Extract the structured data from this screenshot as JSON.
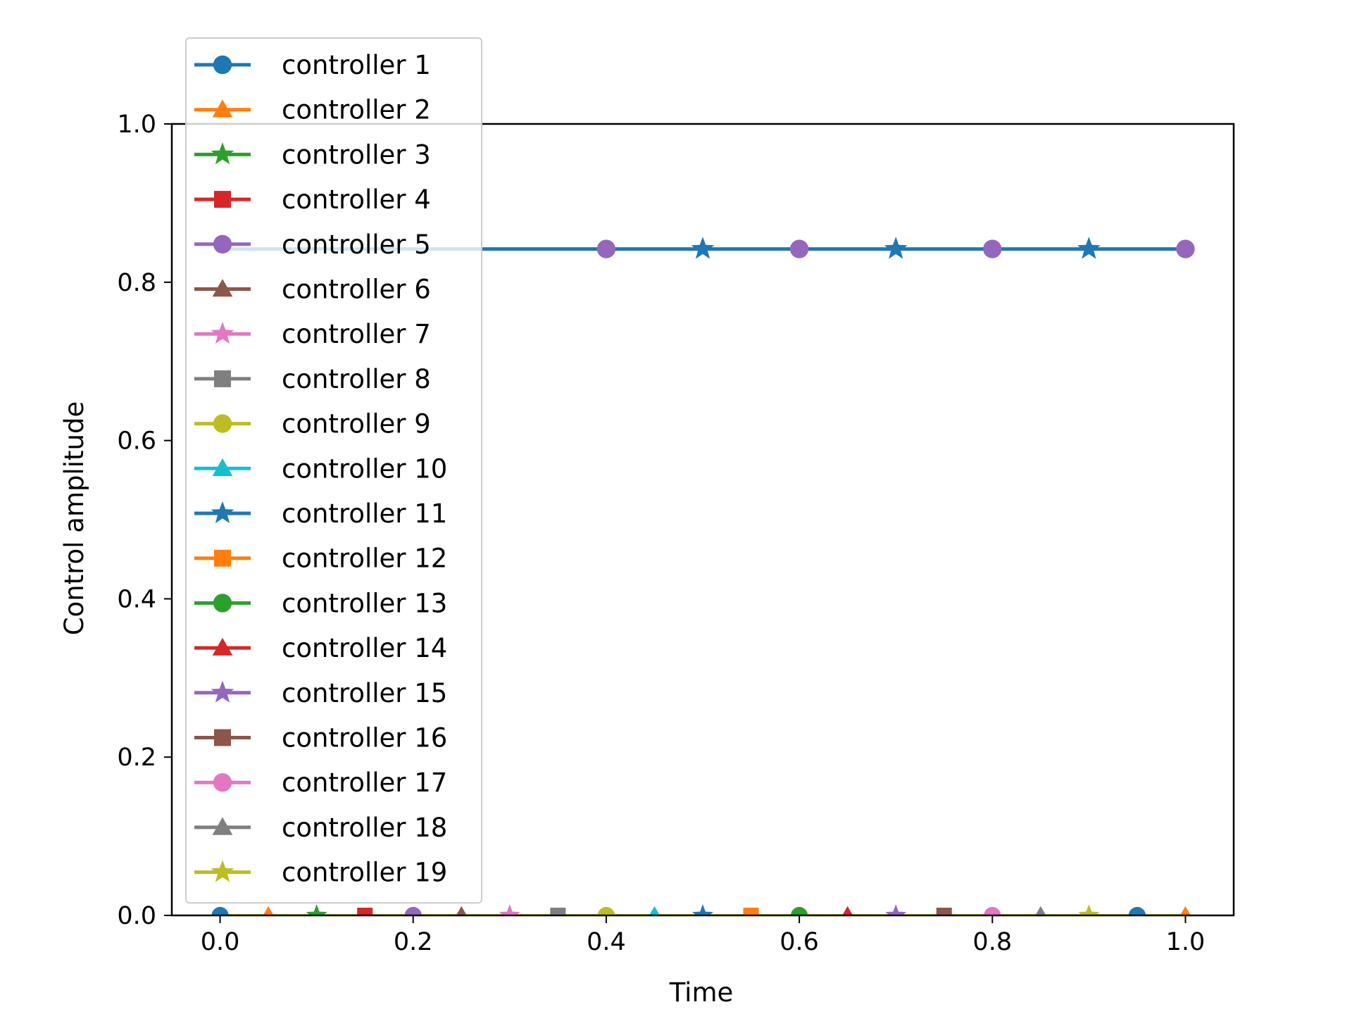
{
  "chart_data": {
    "type": "line",
    "title": "",
    "xlabel": "Time",
    "ylabel": "Control amplitude",
    "xlim": [
      -0.05,
      1.05
    ],
    "ylim": [
      0.0,
      1.0
    ],
    "xticks": [
      "0.0",
      "0.2",
      "0.4",
      "0.6",
      "0.8",
      "1.0"
    ],
    "yticks": [
      "0.0",
      "0.2",
      "0.4",
      "0.6",
      "0.8",
      "1.0"
    ],
    "grid": false,
    "legend_position": "upper-left",
    "x": [
      0.0,
      0.05,
      0.1,
      0.15,
      0.2,
      0.25,
      0.3,
      0.35,
      0.4,
      0.45,
      0.5,
      0.55,
      0.6,
      0.65,
      0.7,
      0.75,
      0.8,
      0.85,
      0.9,
      0.95,
      1.0
    ],
    "series": [
      {
        "name": "controller 1",
        "color": "#1f77b4",
        "marker": "circle",
        "value": 0.0
      },
      {
        "name": "controller 2",
        "color": "#ff7f0e",
        "marker": "triangle",
        "value": 0.0
      },
      {
        "name": "controller 3",
        "color": "#2ca02c",
        "marker": "star",
        "value": 0.0
      },
      {
        "name": "controller 4",
        "color": "#d62728",
        "marker": "square",
        "value": 0.0
      },
      {
        "name": "controller 5",
        "color": "#9467bd",
        "marker": "circle",
        "value": 0.0
      },
      {
        "name": "controller 6",
        "color": "#8c564b",
        "marker": "triangle",
        "value": 0.0
      },
      {
        "name": "controller 7",
        "color": "#e377c2",
        "marker": "star",
        "value": 0.0
      },
      {
        "name": "controller 8",
        "color": "#7f7f7f",
        "marker": "square",
        "value": 0.0
      },
      {
        "name": "controller 9",
        "color": "#bcbd22",
        "marker": "circle",
        "value": 0.0
      },
      {
        "name": "controller 10",
        "color": "#17becf",
        "marker": "triangle",
        "value": 0.0
      },
      {
        "name": "controller 11",
        "color": "#1f77b4",
        "marker": "star",
        "value": 0.0
      },
      {
        "name": "controller 12",
        "color": "#ff7f0e",
        "marker": "square",
        "value": 0.0
      },
      {
        "name": "controller 13",
        "color": "#2ca02c",
        "marker": "circle",
        "value": 0.0
      },
      {
        "name": "controller 14",
        "color": "#d62728",
        "marker": "triangle",
        "value": 0.0
      },
      {
        "name": "controller 15",
        "color": "#9467bd",
        "marker": "star",
        "value": 0.0
      },
      {
        "name": "controller 16",
        "color": "#8c564b",
        "marker": "square",
        "value": 0.0
      },
      {
        "name": "controller 17",
        "color": "#e377c2",
        "marker": "circle",
        "value": 0.0
      },
      {
        "name": "controller 18",
        "color": "#7f7f7f",
        "marker": "triangle",
        "value": 0.0
      },
      {
        "name": "controller 19",
        "color": "#bcbd22",
        "marker": "star",
        "value": 0.0
      }
    ],
    "upper_line": {
      "value": 0.842,
      "color": "#1f77b4",
      "x_start": 0.0,
      "x_end": 1.0,
      "markers": [
        {
          "x": 0.4,
          "marker": "circle",
          "color": "#9467bd"
        },
        {
          "x": 0.5,
          "marker": "star",
          "color": "#1f77b4"
        },
        {
          "x": 0.6,
          "marker": "circle",
          "color": "#9467bd"
        },
        {
          "x": 0.7,
          "marker": "star",
          "color": "#1f77b4"
        },
        {
          "x": 0.8,
          "marker": "circle",
          "color": "#9467bd"
        },
        {
          "x": 0.9,
          "marker": "star",
          "color": "#1f77b4"
        },
        {
          "x": 1.0,
          "marker": "circle",
          "color": "#9467bd"
        }
      ]
    }
  }
}
